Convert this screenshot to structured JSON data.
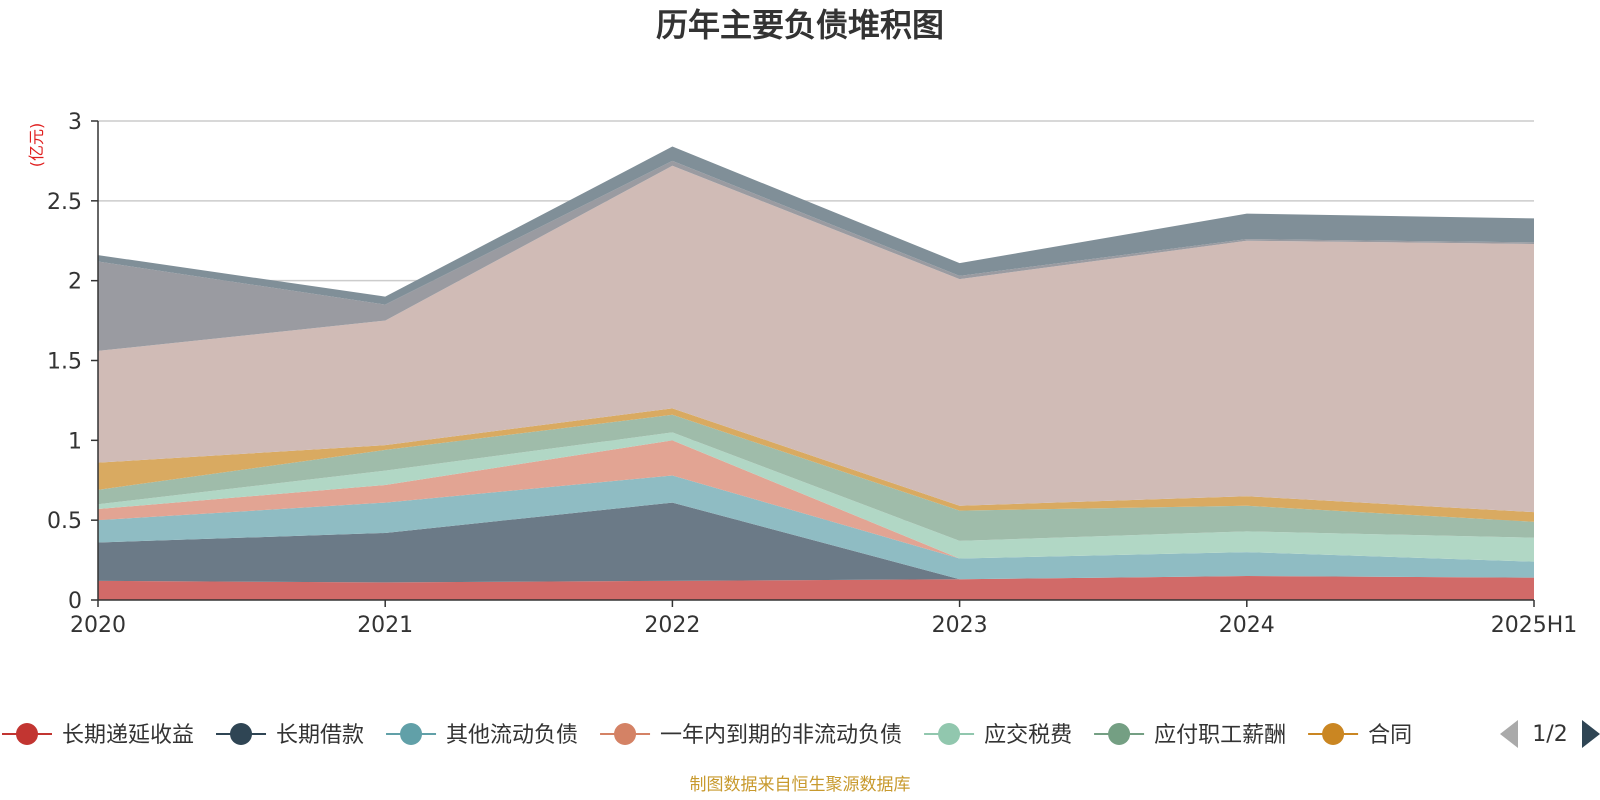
{
  "chart_data": {
    "type": "area",
    "title": "历年主要负债堆积图",
    "unit_label": "(亿元)",
    "xlabel": "",
    "ylabel": "",
    "ylim": [
      0,
      3
    ],
    "y_ticks": [
      "0",
      "0.5",
      "1",
      "1.5",
      "2",
      "2.5",
      "3"
    ],
    "categories": [
      "2020",
      "2021",
      "2022",
      "2023",
      "2024",
      "2025H1"
    ],
    "stacked": true,
    "grid": true,
    "series": [
      {
        "name": "长期递延收益",
        "color": "#d16a68",
        "legend_color": "#c23531",
        "values": [
          0.12,
          0.11,
          0.12,
          0.13,
          0.15,
          0.14
        ]
      },
      {
        "name": "长期借款",
        "color": "#6b7a87",
        "legend_color": "#2f4554",
        "values": [
          0.24,
          0.31,
          0.49,
          0.0,
          0.0,
          0.0
        ]
      },
      {
        "name": "其他流动负债",
        "color": "#8fbcc3",
        "legend_color": "#61a0a8",
        "values": [
          0.14,
          0.19,
          0.17,
          0.13,
          0.15,
          0.1
        ]
      },
      {
        "name": "一年内到期的非流动负债",
        "color": "#e2a493",
        "legend_color": "#d48265",
        "values": [
          0.07,
          0.11,
          0.22,
          0.0,
          0.0,
          0.0
        ]
      },
      {
        "name": "应交税费",
        "color": "#b1d7c5",
        "legend_color": "#91c7ae",
        "values": [
          0.03,
          0.09,
          0.05,
          0.11,
          0.13,
          0.15
        ]
      },
      {
        "name": "应付职工薪酬",
        "color": "#9fbcaa",
        "legend_color": "#749f83",
        "values": [
          0.09,
          0.13,
          0.11,
          0.19,
          0.16,
          0.1
        ]
      },
      {
        "name": "合同",
        "color": "#d9aa61",
        "legend_color": "#ca8622",
        "values": [
          0.17,
          0.03,
          0.04,
          0.03,
          0.06,
          0.06
        ]
      },
      {
        "name": "",
        "color": "#d0bbb6",
        "values": [
          0.7,
          0.78,
          1.52,
          1.42,
          1.6,
          1.68
        ]
      },
      {
        "name": "",
        "color": "#9a9ba1",
        "values": [
          0.56,
          0.1,
          0.03,
          0.02,
          0.01,
          0.01
        ]
      },
      {
        "name": "",
        "color": "#808f98",
        "values": [
          0.04,
          0.05,
          0.09,
          0.08,
          0.16,
          0.15
        ]
      }
    ],
    "legend": {
      "position": "bottom",
      "page_label": "1/2"
    },
    "source_note": "制图数据来自恒生聚源数据库"
  }
}
